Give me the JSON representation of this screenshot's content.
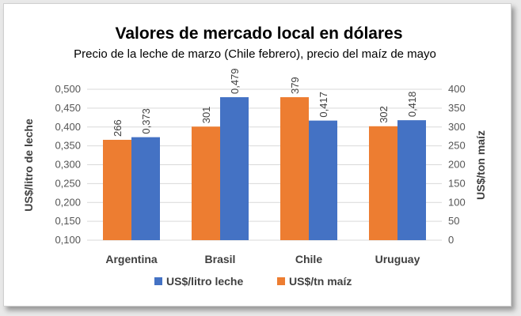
{
  "chart_data": {
    "type": "bar",
    "title": "Valores de mercado local en dólares",
    "subtitle": "Precio de la leche de marzo (Chile febrero), precio del maíz de mayo",
    "categories": [
      "Argentina",
      "Brasil",
      "Chile",
      "Uruguay"
    ],
    "ylabel": "US$/litro de leche",
    "y2label": "US$/ton maíz",
    "ylim": [
      0.1,
      0.5
    ],
    "y2lim": [
      0,
      400
    ],
    "yticks": [
      "0,100",
      "0,150",
      "0,200",
      "0,250",
      "0,300",
      "0,350",
      "0,400",
      "0,450",
      "0,500"
    ],
    "y2ticks": [
      "0",
      "50",
      "100",
      "150",
      "200",
      "250",
      "300",
      "350",
      "400"
    ],
    "series": [
      {
        "name": "US$/litro leche",
        "axis": "left",
        "color": "#4472C4",
        "values": [
          0.373,
          0.479,
          0.417,
          0.418
        ],
        "labels": [
          "0,373",
          "0,479",
          "0,417",
          "0,418"
        ]
      },
      {
        "name": "US$/tn maíz",
        "axis": "right",
        "color": "#ED7D31",
        "values": [
          266,
          301,
          379,
          302
        ],
        "labels": [
          "266",
          "301",
          "379",
          "302"
        ]
      }
    ],
    "legend": "bottom",
    "grid": true
  }
}
